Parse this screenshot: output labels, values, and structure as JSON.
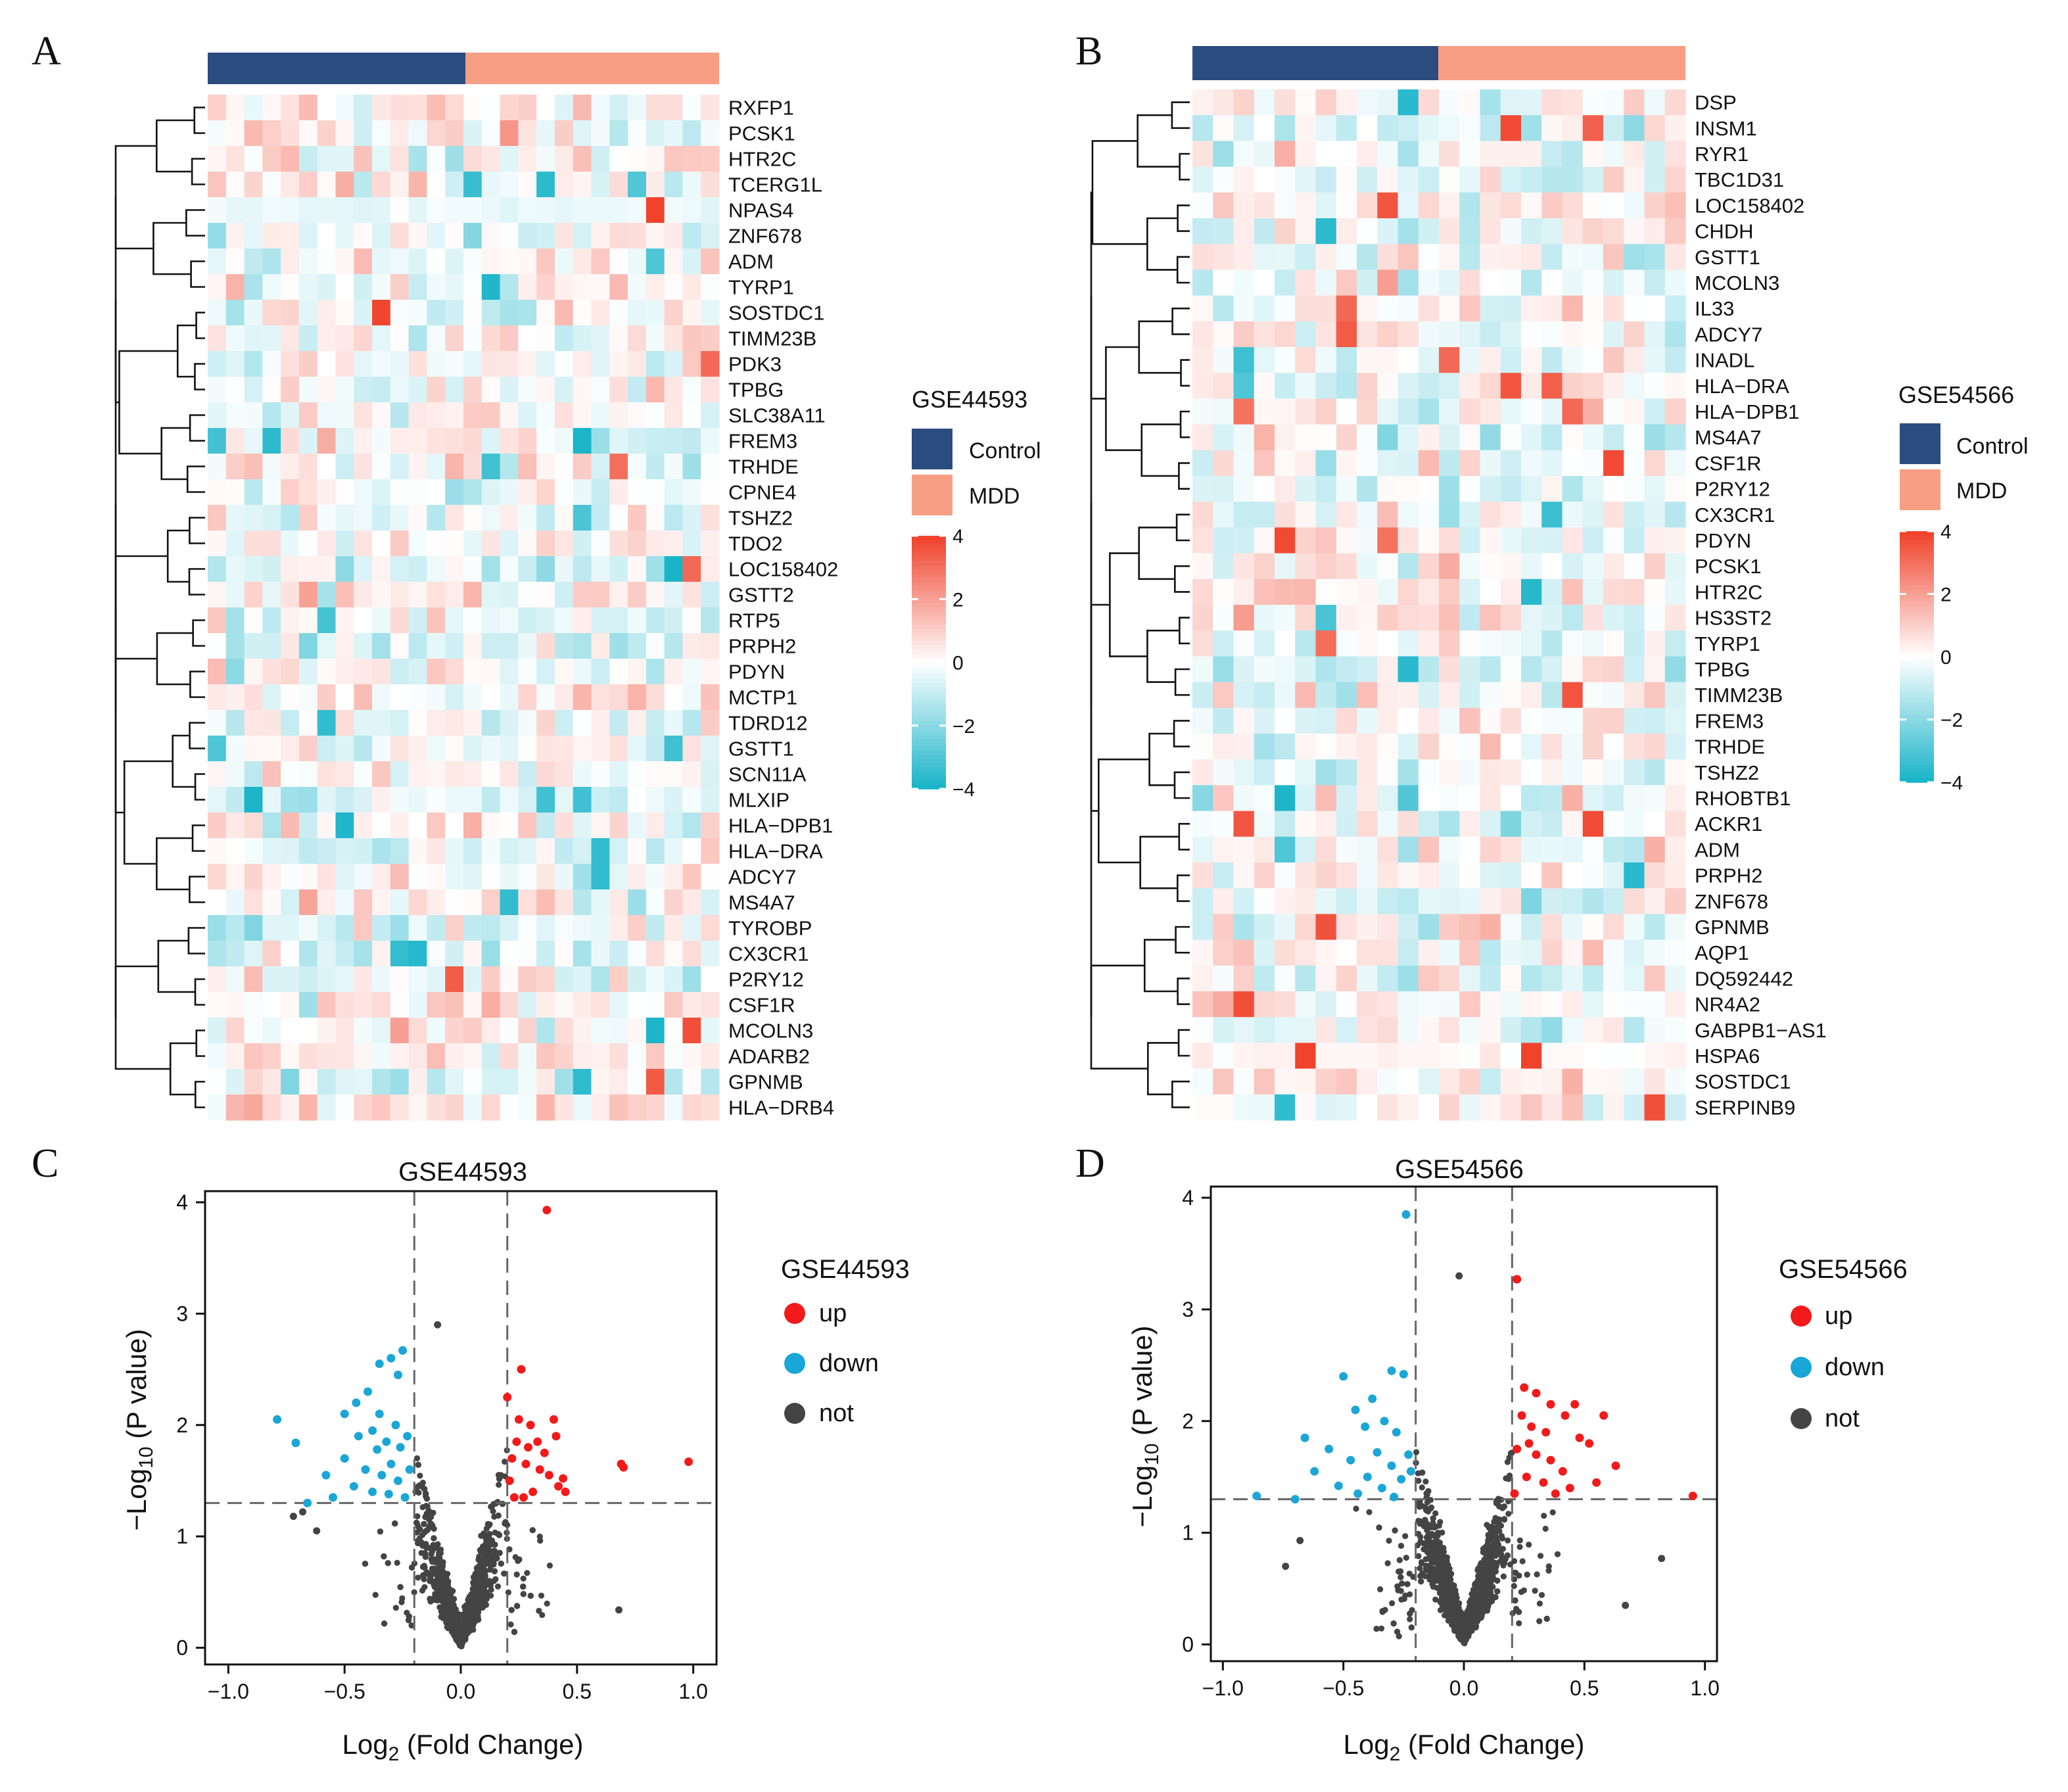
{
  "colors": {
    "control": "#2b4c7e",
    "mdd": "#f79e84",
    "high": "#f0432c",
    "mid": "#ffffff",
    "low": "#1ab4c9",
    "up": "#f21a1a",
    "down": "#1aa6d6",
    "not": "#444444",
    "dashed": "#7a7a7a"
  },
  "panels": {
    "A": {
      "letter": "A"
    },
    "B": {
      "letter": "B"
    },
    "C": {
      "letter": "C"
    },
    "D": {
      "letter": "D"
    }
  },
  "chart_data": [
    {
      "type": "heatmap",
      "panel": "A",
      "dataset": "GSE44593",
      "legend_title": "GSE44593",
      "groups": [
        {
          "name": "Control",
          "samples": 14
        },
        {
          "name": "MDD",
          "samples": 14
        }
      ],
      "color_scale": {
        "min": -4,
        "max": 4,
        "ticks": [
          "4",
          "2",
          "0",
          "−2",
          "−4"
        ]
      },
      "genes": [
        "RXFP1",
        "PCSK1",
        "HTR2C",
        "TCERG1L",
        "NPAS4",
        "ZNF678",
        "ADM",
        "TYRP1",
        "SOSTDC1",
        "TIMM23B",
        "PDK3",
        "TPBG",
        "SLC38A11",
        "FREM3",
        "TRHDE",
        "CPNE4",
        "TSHZ2",
        "TDO2",
        "LOC158402",
        "GSTT2",
        "RTP5",
        "PRPH2",
        "PDYN",
        "MCTP1",
        "TDRD12",
        "GSTT1",
        "SCN11A",
        "MLXIP",
        "HLA−DPB1",
        "HLA−DRA",
        "ADCY7",
        "MS4A7",
        "TYROBP",
        "CX3CR1",
        "P2RY12",
        "CSF1R",
        "MCOLN3",
        "ADARB2",
        "GPNMB",
        "HLA−DRB4"
      ]
    },
    {
      "type": "heatmap",
      "panel": "B",
      "dataset": "GSE54566",
      "legend_title": "GSE54566",
      "groups": [
        {
          "name": "Control",
          "samples": 12
        },
        {
          "name": "MDD",
          "samples": 12
        }
      ],
      "color_scale": {
        "min": -4,
        "max": 4,
        "ticks": [
          "4",
          "2",
          "0",
          "−2",
          "−4"
        ]
      },
      "genes": [
        "DSP",
        "INSM1",
        "RYR1",
        "TBC1D31",
        "LOC158402",
        "CHDH",
        "GSTT1",
        "MCOLN3",
        "IL33",
        "ADCY7",
        "INADL",
        "HLA−DRA",
        "HLA−DPB1",
        "MS4A7",
        "CSF1R",
        "P2RY12",
        "CX3CR1",
        "PDYN",
        "PCSK1",
        "HTR2C",
        "HS3ST2",
        "TYRP1",
        "TPBG",
        "TIMM23B",
        "FREM3",
        "TRHDE",
        "TSHZ2",
        "RHOBTB1",
        "ACKR1",
        "ADM",
        "PRPH2",
        "ZNF678",
        "GPNMB",
        "AQP1",
        "DQ592442",
        "NR4A2",
        "GABPB1−AS1",
        "HSPA6",
        "SOSTDC1",
        "SERPINB9"
      ]
    },
    {
      "type": "scatter",
      "panel": "C",
      "title": "GSE44593",
      "legend_title": "GSE44593",
      "xlabel": "Log2 (Fold Change)",
      "ylabel": "−Log10 (P value)",
      "xlim": [
        -1.1,
        1.1
      ],
      "ylim": [
        -0.15,
        4.1
      ],
      "xticks": [
        "−1.0",
        "−0.5",
        "0.0",
        "0.5",
        "1.0"
      ],
      "yticks": [
        "0",
        "1",
        "2",
        "3",
        "4"
      ],
      "thresholds": {
        "logfc": 0.2,
        "neg_log10_p": 1.3
      },
      "categories": [
        "up",
        "down",
        "not"
      ],
      "up_points": [
        [
          0.37,
          3.93
        ],
        [
          0.26,
          2.5
        ],
        [
          0.2,
          2.25
        ],
        [
          0.25,
          2.05
        ],
        [
          0.3,
          2.0
        ],
        [
          0.33,
          1.85
        ],
        [
          0.4,
          2.05
        ],
        [
          0.41,
          1.9
        ],
        [
          0.22,
          1.7
        ],
        [
          0.28,
          1.65
        ],
        [
          0.34,
          1.6
        ],
        [
          0.38,
          1.55
        ],
        [
          0.42,
          1.45
        ],
        [
          0.31,
          1.4
        ],
        [
          0.27,
          1.35
        ],
        [
          0.21,
          1.5
        ],
        [
          0.69,
          1.65
        ],
        [
          0.7,
          1.62
        ],
        [
          0.98,
          1.67
        ],
        [
          0.24,
          1.85
        ],
        [
          0.36,
          1.75
        ],
        [
          0.23,
          1.35
        ],
        [
          0.45,
          1.4
        ],
        [
          0.29,
          1.8
        ],
        [
          0.44,
          1.52
        ]
      ],
      "down_points": [
        [
          -0.25,
          2.67
        ],
        [
          -0.3,
          2.6
        ],
        [
          -0.35,
          2.55
        ],
        [
          -0.27,
          2.45
        ],
        [
          -0.4,
          2.3
        ],
        [
          -0.45,
          2.2
        ],
        [
          -0.5,
          2.1
        ],
        [
          -0.35,
          2.1
        ],
        [
          -0.28,
          2.0
        ],
        [
          -0.38,
          1.95
        ],
        [
          -0.44,
          1.9
        ],
        [
          -0.32,
          1.85
        ],
        [
          -0.26,
          1.8
        ],
        [
          -0.36,
          1.78
        ],
        [
          -0.5,
          1.7
        ],
        [
          -0.3,
          1.65
        ],
        [
          -0.41,
          1.6
        ],
        [
          -0.34,
          1.55
        ],
        [
          -0.27,
          1.5
        ],
        [
          -0.46,
          1.45
        ],
        [
          -0.38,
          1.4
        ],
        [
          -0.31,
          1.38
        ],
        [
          -0.22,
          1.6
        ],
        [
          -0.24,
          1.35
        ],
        [
          -0.79,
          2.05
        ],
        [
          -0.71,
          1.84
        ],
        [
          -0.66,
          1.3
        ],
        [
          -0.55,
          1.35
        ],
        [
          -0.58,
          1.55
        ],
        [
          -0.23,
          1.9
        ]
      ],
      "notable_not_points": [
        [
          -0.1,
          2.9
        ],
        [
          0.68,
          0.34
        ],
        [
          -0.68,
          1.22
        ],
        [
          -0.72,
          1.18
        ],
        [
          -0.62,
          1.05
        ]
      ]
    },
    {
      "type": "scatter",
      "panel": "D",
      "title": "GSE54566",
      "legend_title": "GSE54566",
      "xlabel": "Log2 (Fold Change)",
      "ylabel": "−Log10 (P value)",
      "xlim": [
        -1.05,
        1.05
      ],
      "ylim": [
        -0.15,
        4.1
      ],
      "xticks": [
        "−1.0",
        "−0.5",
        "0.0",
        "0.5",
        "1.0"
      ],
      "yticks": [
        "0",
        "1",
        "2",
        "3",
        "4"
      ],
      "thresholds": {
        "logfc": 0.2,
        "neg_log10_p": 1.3
      },
      "categories": [
        "up",
        "down",
        "not"
      ],
      "up_points": [
        [
          0.22,
          3.27
        ],
        [
          0.25,
          2.3
        ],
        [
          0.3,
          2.25
        ],
        [
          0.36,
          2.15
        ],
        [
          0.42,
          2.05
        ],
        [
          0.46,
          2.15
        ],
        [
          0.28,
          1.95
        ],
        [
          0.34,
          1.9
        ],
        [
          0.48,
          1.85
        ],
        [
          0.52,
          1.8
        ],
        [
          0.58,
          2.05
        ],
        [
          0.63,
          1.6
        ],
        [
          0.22,
          1.75
        ],
        [
          0.3,
          1.7
        ],
        [
          0.36,
          1.65
        ],
        [
          0.41,
          1.55
        ],
        [
          0.26,
          1.5
        ],
        [
          0.33,
          1.45
        ],
        [
          0.44,
          1.4
        ],
        [
          0.21,
          1.35
        ],
        [
          0.55,
          1.45
        ],
        [
          0.95,
          1.33
        ],
        [
          0.27,
          1.8
        ],
        [
          0.38,
          1.35
        ],
        [
          0.24,
          2.05
        ]
      ],
      "down_points": [
        [
          -0.24,
          3.85
        ],
        [
          -0.3,
          2.45
        ],
        [
          -0.25,
          2.42
        ],
        [
          -0.5,
          2.4
        ],
        [
          -0.38,
          2.2
        ],
        [
          -0.45,
          2.1
        ],
        [
          -0.33,
          2.0
        ],
        [
          -0.41,
          1.95
        ],
        [
          -0.28,
          1.9
        ],
        [
          -0.56,
          1.75
        ],
        [
          -0.36,
          1.72
        ],
        [
          -0.47,
          1.65
        ],
        [
          -0.3,
          1.6
        ],
        [
          -0.62,
          1.55
        ],
        [
          -0.4,
          1.5
        ],
        [
          -0.26,
          1.48
        ],
        [
          -0.52,
          1.42
        ],
        [
          -0.34,
          1.4
        ],
        [
          -0.22,
          1.55
        ],
        [
          -0.44,
          1.35
        ],
        [
          -0.66,
          1.85
        ],
        [
          -0.86,
          1.33
        ],
        [
          -0.7,
          1.3
        ],
        [
          -0.29,
          1.32
        ],
        [
          -0.23,
          1.7
        ]
      ],
      "notable_not_points": [
        [
          -0.02,
          3.3
        ],
        [
          0.67,
          0.35
        ],
        [
          0.82,
          0.77
        ],
        [
          -0.74,
          0.7
        ],
        [
          -0.68,
          0.93
        ]
      ]
    }
  ]
}
